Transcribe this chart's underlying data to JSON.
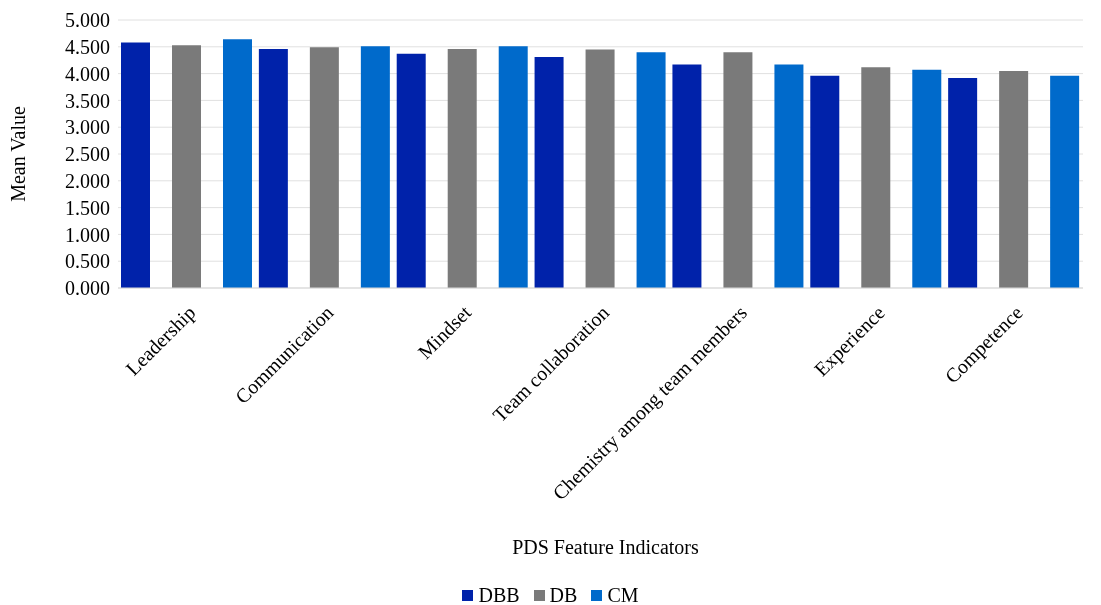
{
  "chart_data": {
    "type": "bar",
    "xlabel": "PDS Feature Indicators",
    "ylabel": "Mean Value",
    "categories": [
      "Leadership",
      "Communication",
      "Mindset",
      "Team collaboration",
      "Chemistry among team members",
      "Experience",
      "Competence"
    ],
    "series": [
      {
        "name": "DBB",
        "color": "#0022aa",
        "values": [
          4.58,
          4.46,
          4.37,
          4.31,
          4.17,
          3.96,
          3.92
        ]
      },
      {
        "name": "DB",
        "color": "#7a7a7a",
        "values": [
          4.53,
          4.49,
          4.46,
          4.45,
          4.4,
          4.12,
          4.05
        ]
      },
      {
        "name": "CM",
        "color": "#006acb",
        "values": [
          4.64,
          4.51,
          4.51,
          4.4,
          4.17,
          4.07,
          3.96
        ]
      }
    ],
    "ylim": [
      0,
      5
    ],
    "yticks": [
      {
        "value": 0,
        "label": "0.000"
      },
      {
        "value": 0.5,
        "label": "0.500"
      },
      {
        "value": 1,
        "label": "1.000"
      },
      {
        "value": 1.5,
        "label": "1.500"
      },
      {
        "value": 2,
        "label": "2.000"
      },
      {
        "value": 2.5,
        "label": "2.500"
      },
      {
        "value": 3,
        "label": "3.000"
      },
      {
        "value": 3.5,
        "label": "3.500"
      },
      {
        "value": 4,
        "label": "4.000"
      },
      {
        "value": 4.5,
        "label": "4.500"
      },
      {
        "value": 5,
        "label": "5.000"
      }
    ],
    "grid": "y",
    "legend": "bottom"
  }
}
